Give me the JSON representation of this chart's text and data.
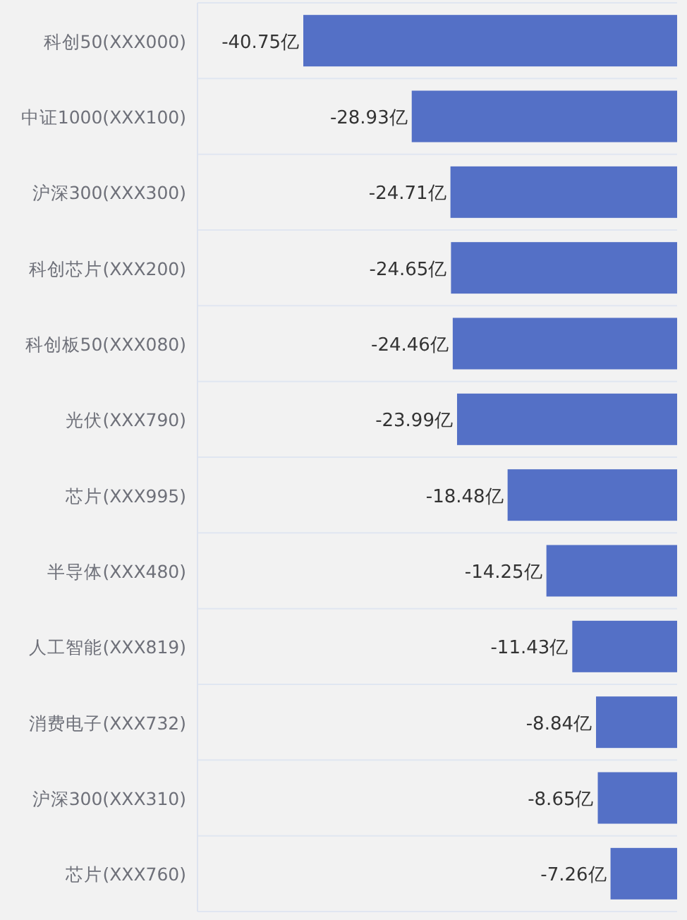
{
  "chart_data": {
    "type": "bar",
    "orientation": "horizontal",
    "categories": [
      "科创50(XXX000)",
      "中证1000(XXX100)",
      "沪深300(XXX300)",
      "科创芯片(XXX200)",
      "科创板50(XXX080)",
      "光伏(XXX790)",
      "芯片(XXX995)",
      "半导体(XXX480)",
      "人工智能(XXX819)",
      "消费电子(XXX732)",
      "沪深300(XXX310)",
      "芯片(XXX760)"
    ],
    "values": [
      -40.75,
      -28.93,
      -24.71,
      -24.65,
      -24.46,
      -23.99,
      -18.48,
      -14.25,
      -11.43,
      -8.84,
      -8.65,
      -7.26
    ],
    "value_labels": [
      "-40.75亿",
      "-28.93亿",
      "-24.71亿",
      "-24.65亿",
      "-24.46亿",
      "-23.99亿",
      "-18.48亿",
      "-14.25亿",
      "-11.43亿",
      "-8.84亿",
      "-8.65亿",
      "-7.26亿"
    ],
    "color": "#5470c6",
    "tick_labels": "y",
    "grid": "y"
  }
}
